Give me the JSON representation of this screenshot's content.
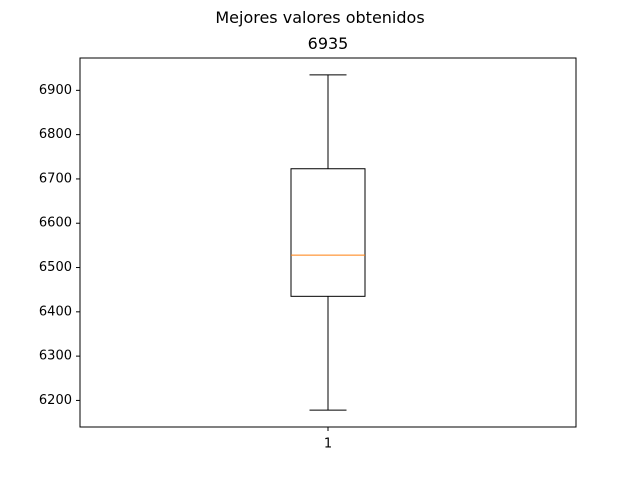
{
  "chart_data": {
    "type": "box",
    "suptitle": "Mejores valores obtenidos",
    "title": "6935",
    "categories": [
      "1"
    ],
    "boxes": [
      {
        "label": "1",
        "whisker_low": 6178,
        "q1": 6435,
        "median": 6528,
        "q3": 6723,
        "whisker_high": 6935
      }
    ],
    "y_ticks": [
      6200,
      6300,
      6400,
      6500,
      6600,
      6700,
      6800,
      6900
    ],
    "ylim": [
      6140,
      6973
    ],
    "grid": false,
    "colors": {
      "box": "#000000",
      "median": "#ff7f0e"
    }
  }
}
